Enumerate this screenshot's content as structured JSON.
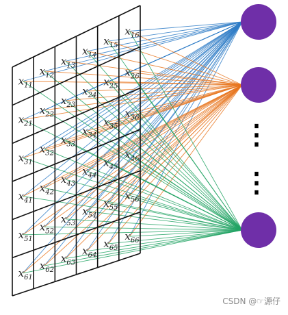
{
  "grid": {
    "rows": 6,
    "cols": 6,
    "labels": [
      [
        "11",
        "12",
        "13",
        "14",
        "15",
        "16"
      ],
      [
        "21",
        "22",
        "23",
        "24",
        "25",
        "26"
      ],
      [
        "31",
        "32",
        "33",
        "34",
        "35",
        "36"
      ],
      [
        "41",
        "42",
        "43",
        "44",
        "45",
        "46"
      ],
      [
        "51",
        "52",
        "53",
        "54",
        "55",
        "56"
      ],
      [
        "61",
        "62",
        "63",
        "64",
        "65",
        "66"
      ]
    ],
    "label_prefix": "x"
  },
  "neurons": [
    {
      "id": "n1",
      "color": "#6f2fa8",
      "line_color": "#2f7cc7"
    },
    {
      "id": "n2",
      "color": "#6f2fa8",
      "line_color": "#e8761f"
    },
    {
      "id": "n3",
      "color": "#6f2fa8",
      "line_color": "#22a364"
    }
  ],
  "ellipsis": "⋮",
  "watermark": "CSDN @☞源仔"
}
